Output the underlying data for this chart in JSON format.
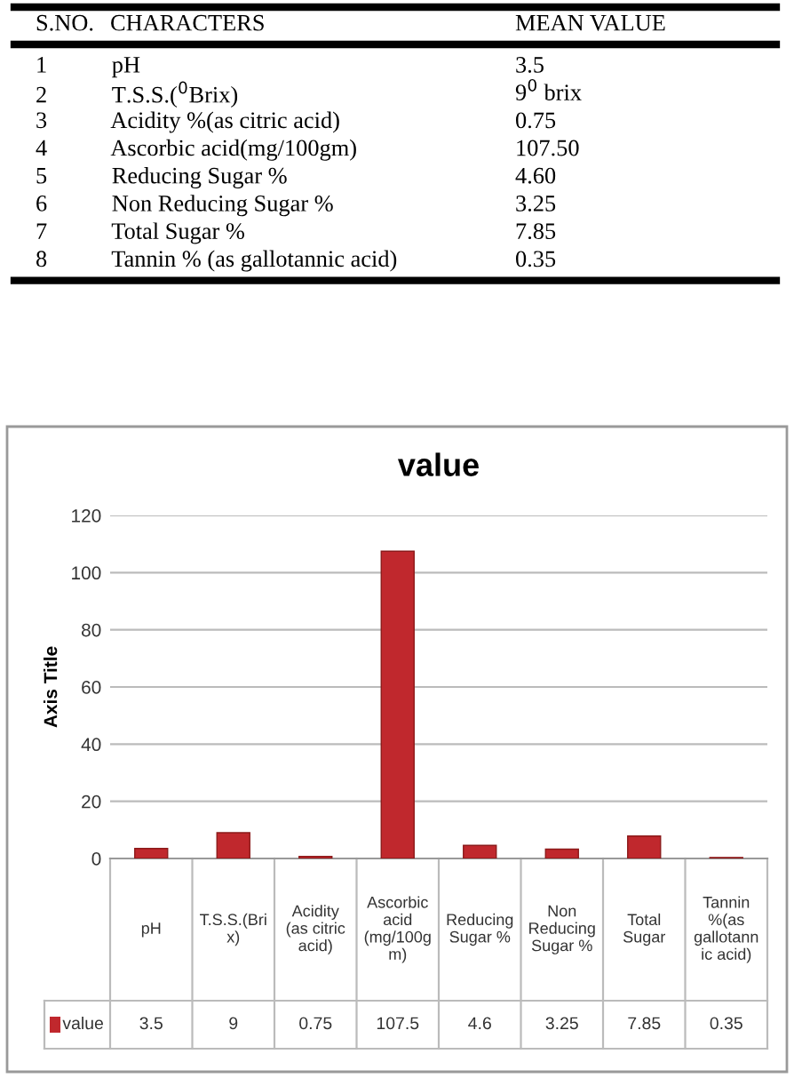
{
  "chart_data": [
    {
      "type": "other",
      "annotations": [
        "S.NO.",
        "CHARACTERS",
        "MEAN VALUE",
        "1",
        "pH",
        "3.5",
        "2",
        "T.S.S.($^{0}$Brix)",
        "9$^{0}$ brix",
        "3",
        "Acidity %(as citric acid)",
        "0.75",
        "4",
        "Ascorbic acid(mg/100gm)",
        "107.50",
        "5",
        "Reducing Sugar %",
        "4.60",
        "6",
        "Non Reducing Sugar %",
        "3.25",
        "7",
        "Total Sugar %",
        "7.85",
        "8",
        "Tannin % (as gallotannic acid)",
        "0.35"
      ]
    },
    {
      "type": "bar",
      "title": "value",
      "ylabel": "Axis Title",
      "categories": [
        "pH",
        "T.S.S.(Bri\nx)",
        "Acidity\n(as citric\nacid)",
        "Ascorbic\nacid\n(mg/100g\nm)",
        "Reducing\nSugar %",
        "Non\nReducing\nSugar %",
        "Total\nSugar",
        "Tannin\n%(as\ngallotann\nic acid)"
      ],
      "series": [
        {
          "name": "value",
          "color": "#c0282d",
          "values": [
            3.5,
            9,
            0.75,
            107.5,
            4.6,
            3.25,
            7.85,
            0.35
          ]
        }
      ],
      "ylim": [
        0,
        120
      ],
      "yticks": [
        0,
        20,
        40,
        60,
        80,
        100,
        120
      ],
      "grid": "y",
      "legend": "bottom",
      "data_labels": true
    }
  ]
}
